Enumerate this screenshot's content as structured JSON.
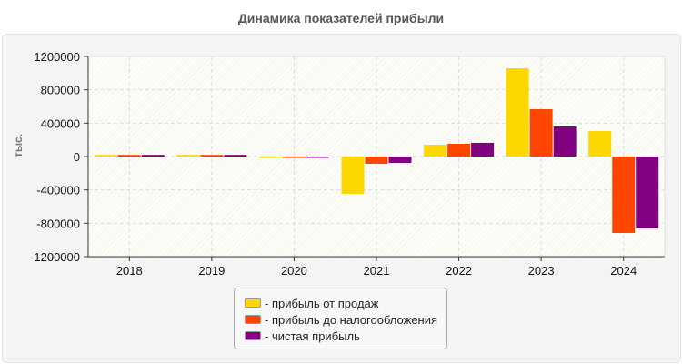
{
  "chart_data": {
    "type": "bar",
    "title": "Динамика показателей прибыли",
    "ylabel": "тыс.",
    "xlabel": "",
    "ylim": [
      -1200000,
      1200000
    ],
    "yticks": [
      "1200000",
      "800000",
      "400000",
      "0",
      "-400000",
      "-800000",
      "-1200000"
    ],
    "ytick_values": [
      1200000,
      800000,
      400000,
      0,
      -400000,
      -800000,
      -1200000
    ],
    "categories": [
      "2018",
      "2019",
      "2020",
      "2021",
      "2022",
      "2023",
      "2024"
    ],
    "grid": true,
    "legend_position": "bottom",
    "series": [
      {
        "name": "- прибыль от продаж",
        "color": "#FFD700",
        "values": [
          20000,
          20000,
          -15000,
          -447000,
          142000,
          1058000,
          305000
        ]
      },
      {
        "name": "- прибыль до налогообложения",
        "color": "#FF4500",
        "values": [
          20000,
          20000,
          -8000,
          -87000,
          153000,
          567000,
          -916000
        ]
      },
      {
        "name": "- чистая прибыль",
        "color": "#800080",
        "values": [
          20000,
          20000,
          -5000,
          -76000,
          164000,
          360000,
          -862000
        ]
      }
    ]
  }
}
